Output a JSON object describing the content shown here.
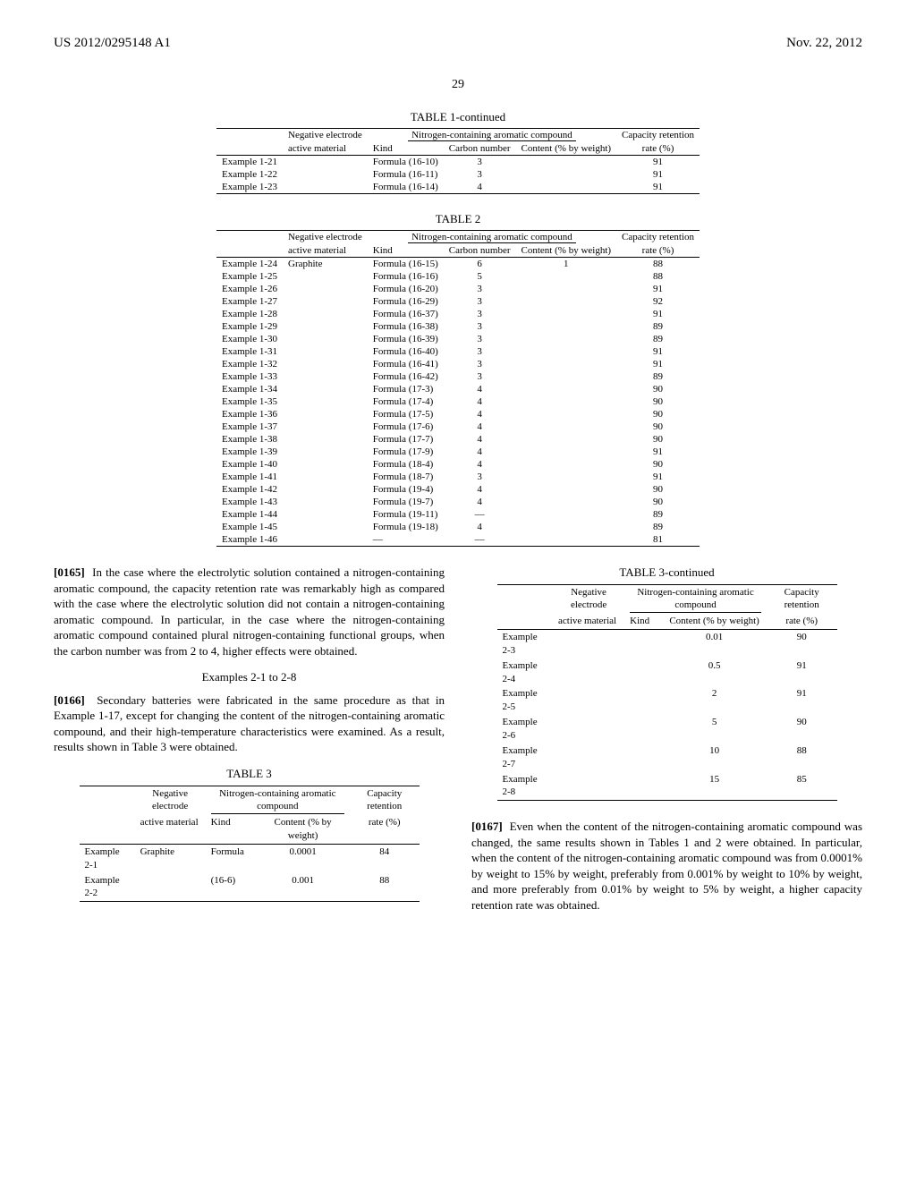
{
  "header": {
    "left": "US 2012/0295148 A1",
    "right": "Nov. 22, 2012"
  },
  "page_number": "29",
  "table1": {
    "title": "TABLE 1-continued",
    "group_headers": {
      "neg": "Negative electrode",
      "compound": "Nitrogen-containing aromatic compound",
      "cap": "Capacity retention"
    },
    "col_headers": {
      "active": "active material",
      "kind": "Kind",
      "carbon": "Carbon number",
      "content": "Content (% by weight)",
      "rate": "rate (%)"
    },
    "rows": [
      {
        "ex": "Example 1-21",
        "kind": "Formula (16-10)",
        "carbon": "3",
        "rate": "91"
      },
      {
        "ex": "Example 1-22",
        "kind": "Formula (16-11)",
        "carbon": "3",
        "rate": "91"
      },
      {
        "ex": "Example 1-23",
        "kind": "Formula (16-14)",
        "carbon": "4",
        "rate": "91"
      }
    ]
  },
  "table2": {
    "title": "TABLE 2",
    "rows": [
      {
        "ex": "Example 1-24",
        "active": "Graphite",
        "kind": "Formula (16-15)",
        "carbon": "6",
        "content": "1",
        "rate": "88"
      },
      {
        "ex": "Example 1-25",
        "kind": "Formula (16-16)",
        "carbon": "5",
        "rate": "88"
      },
      {
        "ex": "Example 1-26",
        "kind": "Formula (16-20)",
        "carbon": "3",
        "rate": "91"
      },
      {
        "ex": "Example 1-27",
        "kind": "Formula (16-29)",
        "carbon": "3",
        "rate": "92"
      },
      {
        "ex": "Example 1-28",
        "kind": "Formula (16-37)",
        "carbon": "3",
        "rate": "91"
      },
      {
        "ex": "Example 1-29",
        "kind": "Formula (16-38)",
        "carbon": "3",
        "rate": "89"
      },
      {
        "ex": "Example 1-30",
        "kind": "Formula (16-39)",
        "carbon": "3",
        "rate": "89"
      },
      {
        "ex": "Example 1-31",
        "kind": "Formula (16-40)",
        "carbon": "3",
        "rate": "91"
      },
      {
        "ex": "Example 1-32",
        "kind": "Formula (16-41)",
        "carbon": "3",
        "rate": "91"
      },
      {
        "ex": "Example 1-33",
        "kind": "Formula (16-42)",
        "carbon": "3",
        "rate": "89"
      },
      {
        "ex": "Example 1-34",
        "kind": "Formula (17-3)",
        "carbon": "4",
        "rate": "90"
      },
      {
        "ex": "Example 1-35",
        "kind": "Formula (17-4)",
        "carbon": "4",
        "rate": "90"
      },
      {
        "ex": "Example 1-36",
        "kind": "Formula (17-5)",
        "carbon": "4",
        "rate": "90"
      },
      {
        "ex": "Example 1-37",
        "kind": "Formula (17-6)",
        "carbon": "4",
        "rate": "90"
      },
      {
        "ex": "Example 1-38",
        "kind": "Formula (17-7)",
        "carbon": "4",
        "rate": "90"
      },
      {
        "ex": "Example 1-39",
        "kind": "Formula (17-9)",
        "carbon": "4",
        "rate": "91"
      },
      {
        "ex": "Example 1-40",
        "kind": "Formula (18-4)",
        "carbon": "4",
        "rate": "90"
      },
      {
        "ex": "Example 1-41",
        "kind": "Formula (18-7)",
        "carbon": "3",
        "rate": "91"
      },
      {
        "ex": "Example 1-42",
        "kind": "Formula (19-4)",
        "carbon": "4",
        "rate": "90"
      },
      {
        "ex": "Example 1-43",
        "kind": "Formula (19-7)",
        "carbon": "4",
        "rate": "90"
      },
      {
        "ex": "Example 1-44",
        "kind": "Formula (19-11)",
        "carbon": "—",
        "rate": "89"
      },
      {
        "ex": "Example 1-45",
        "kind": "Formula (19-18)",
        "carbon": "4",
        "rate": "89"
      },
      {
        "ex": "Example 1-46",
        "kind": "—",
        "carbon": "—",
        "rate": "81"
      }
    ]
  },
  "para165": {
    "num": "[0165]",
    "text": "In the case where the electrolytic solution contained a nitrogen-containing aromatic compound, the capacity retention rate was remarkably high as compared with the case where the electrolytic solution did not contain a nitrogen-containing aromatic compound. In particular, in the case where the nitrogen-containing aromatic compound contained plural nitrogen-containing functional groups, when the carbon number was from 2 to 4, higher effects were obtained."
  },
  "examples_title": "Examples 2-1 to 2-8",
  "para166": {
    "num": "[0166]",
    "text": "Secondary batteries were fabricated in the same procedure as that in Example 1-17, except for changing the content of the nitrogen-containing aromatic compound, and their high-temperature characteristics were examined. As a result, results shown in Table 3 were obtained."
  },
  "table3": {
    "title": "TABLE 3",
    "group_headers": {
      "neg": "Negative electrode",
      "compound": "Nitrogen-containing aromatic compound",
      "cap": "Capacity retention"
    },
    "col_headers": {
      "active": "active material",
      "kind": "Kind",
      "content": "Content (% by weight)",
      "rate": "rate (%)"
    },
    "rows": [
      {
        "ex": "Example 2-1",
        "active": "Graphite",
        "kind": "Formula",
        "content": "0.0001",
        "rate": "84"
      },
      {
        "ex": "Example 2-2",
        "kind": "(16-6)",
        "content": "0.001",
        "rate": "88"
      }
    ]
  },
  "table3c": {
    "title": "TABLE 3-continued",
    "rows": [
      {
        "ex": "Example 2-3",
        "content": "0.01",
        "rate": "90"
      },
      {
        "ex": "Example 2-4",
        "content": "0.5",
        "rate": "91"
      },
      {
        "ex": "Example 2-5",
        "content": "2",
        "rate": "91"
      },
      {
        "ex": "Example 2-6",
        "content": "5",
        "rate": "90"
      },
      {
        "ex": "Example 2-7",
        "content": "10",
        "rate": "88"
      },
      {
        "ex": "Example 2-8",
        "content": "15",
        "rate": "85"
      }
    ]
  },
  "para167": {
    "num": "[0167]",
    "text": "Even when the content of the nitrogen-containing aromatic compound was changed, the same results shown in Tables 1 and 2 were obtained. In particular, when the content of the nitrogen-containing aromatic compound was from 0.0001% by weight to 15% by weight, preferably from 0.001% by weight to 10% by weight, and more preferably from 0.01% by weight to 5% by weight, a higher capacity retention rate was obtained."
  }
}
